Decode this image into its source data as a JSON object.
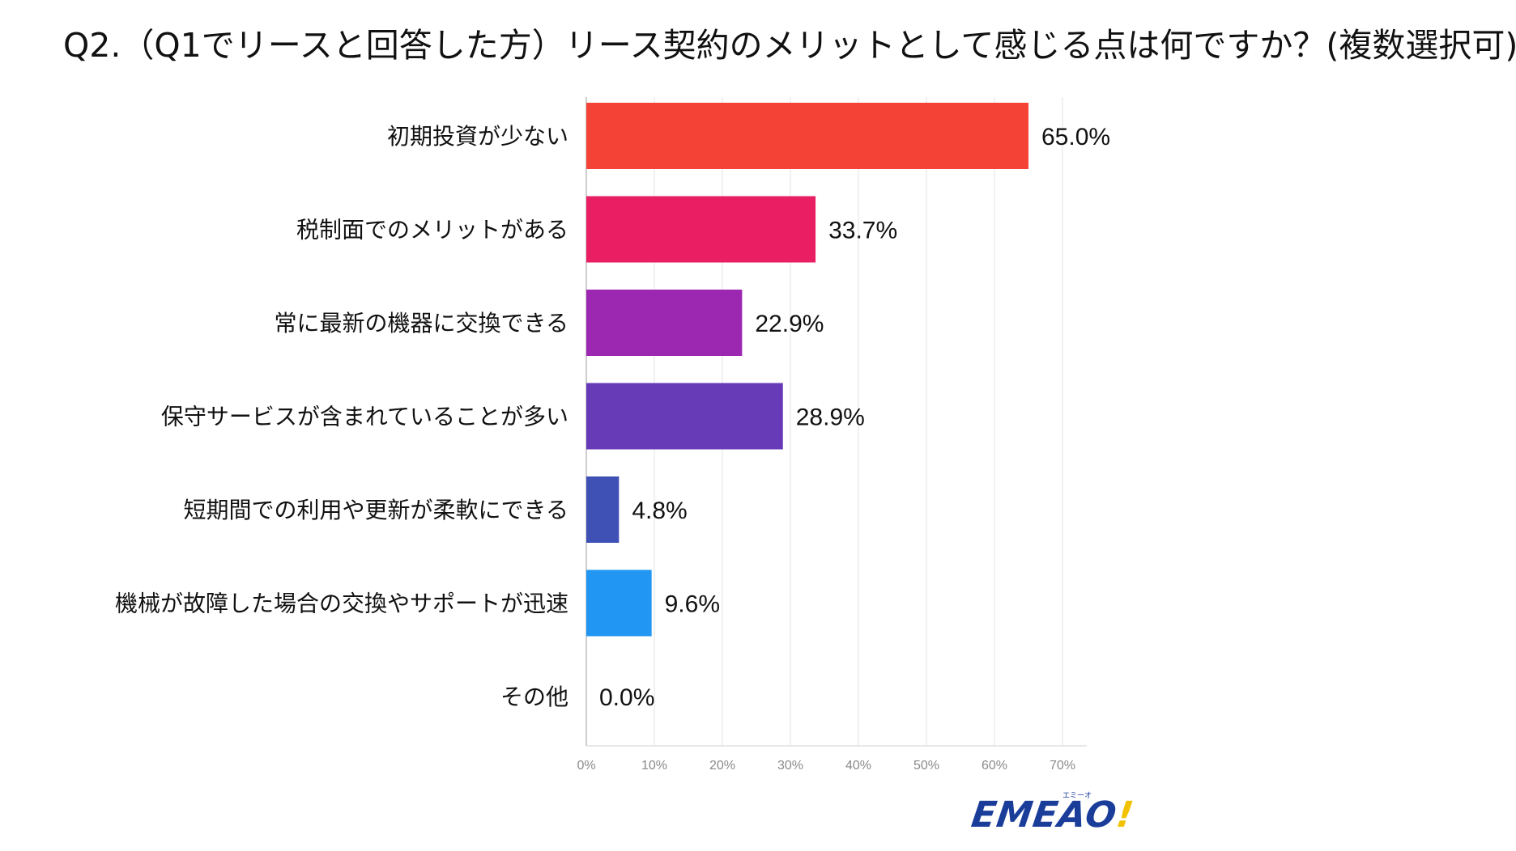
{
  "title": "Q2.（Q1でリースと回答した方）リース契約のメリットとして感じる点は何ですか？(複数選択可)",
  "chart_data": {
    "type": "bar",
    "orientation": "horizontal",
    "categories": [
      "初期投資が少ない",
      "税制面でのメリットがある",
      "常に最新の機器に交換できる",
      "保守サービスが含まれていることが多い",
      "短期間での利用や更新が柔軟にできる",
      "機械が故障した場合の交換やサポートが迅速",
      "その他"
    ],
    "values": [
      65.0,
      33.7,
      22.9,
      28.9,
      4.8,
      9.6,
      0.0
    ],
    "value_labels": [
      "65.0%",
      "33.7%",
      "22.9%",
      "28.9%",
      "4.8%",
      "9.6%",
      "0.0%"
    ],
    "colors": [
      "#f44336",
      "#e91e63",
      "#9c27b0",
      "#673ab7",
      "#3f51b5",
      "#2196f3",
      "#03a9f4"
    ],
    "xlim": [
      0,
      70
    ],
    "x_ticks": [
      "0%",
      "10%",
      "20%",
      "30%",
      "40%",
      "50%",
      "60%",
      "70%"
    ],
    "grid": true
  },
  "logo": {
    "text": "EMEAO",
    "exclamation": "!",
    "kana": "エミーオ"
  }
}
